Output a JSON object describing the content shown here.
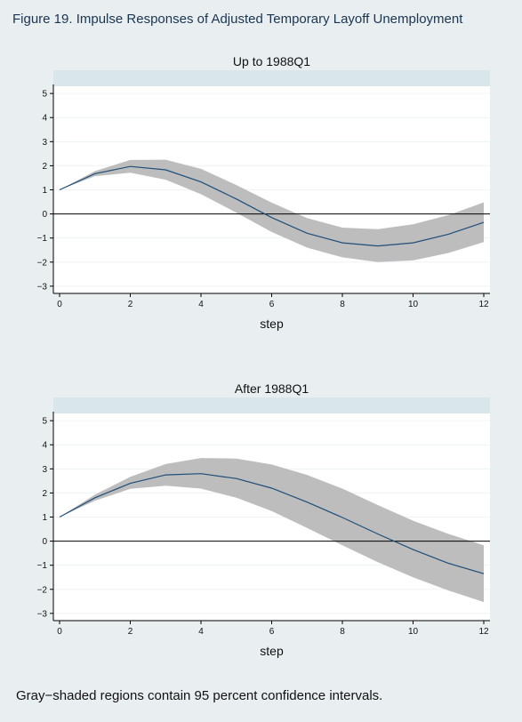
{
  "figure_title": "Figure 19.  Impulse Responses of Adjusted Temporary Layoff Unemployment",
  "footnote": "Gray−shaded regions contain 95 percent confidence intervals.",
  "colors": {
    "background": "#e9eef1",
    "plot_area": "#ffffff",
    "title_band": "#d9e6ec",
    "band": "#bdbdbd",
    "line": "#1f4e79",
    "zero_line": "#000000"
  },
  "chart_data": [
    {
      "type": "line",
      "title": "Up to 1988Q1",
      "xlabel": "step",
      "ylabel": "",
      "xlim": [
        0,
        12
      ],
      "ylim": [
        -3.3,
        5.3
      ],
      "x_ticks": [
        0,
        2,
        4,
        6,
        8,
        10,
        12
      ],
      "y_ticks": [
        -3,
        -2,
        -1,
        0,
        1,
        2,
        3,
        4,
        5
      ],
      "grid": true,
      "zero_line": true,
      "x": [
        0,
        1,
        2,
        3,
        4,
        5,
        6,
        7,
        8,
        9,
        10,
        11,
        12
      ],
      "series": [
        {
          "values": [
            1.0,
            1.67,
            1.97,
            1.83,
            1.33,
            0.62,
            -0.15,
            -0.8,
            -1.2,
            -1.33,
            -1.2,
            -0.84,
            -0.35
          ]
        }
      ],
      "band": {
        "upper": [
          1.0,
          1.78,
          2.24,
          2.25,
          1.87,
          1.2,
          0.47,
          -0.17,
          -0.57,
          -0.63,
          -0.43,
          -0.05,
          0.48
        ],
        "lower": [
          1.0,
          1.57,
          1.71,
          1.42,
          0.82,
          0.05,
          -0.75,
          -1.4,
          -1.8,
          -2.0,
          -1.93,
          -1.62,
          -1.17
        ]
      }
    },
    {
      "type": "line",
      "title": "After 1988Q1",
      "xlabel": "step",
      "ylabel": "",
      "xlim": [
        0,
        12
      ],
      "ylim": [
        -3.3,
        5.3
      ],
      "x_ticks": [
        0,
        2,
        4,
        6,
        8,
        10,
        12
      ],
      "y_ticks": [
        -3,
        -2,
        -1,
        0,
        1,
        2,
        3,
        4,
        5
      ],
      "grid": true,
      "zero_line": true,
      "x": [
        0,
        1,
        2,
        3,
        4,
        5,
        6,
        7,
        8,
        9,
        10,
        11,
        12
      ],
      "series": [
        {
          "values": [
            1.0,
            1.8,
            2.4,
            2.75,
            2.8,
            2.6,
            2.2,
            1.62,
            0.98,
            0.3,
            -0.35,
            -0.92,
            -1.35
          ]
        }
      ],
      "band": {
        "upper": [
          1.0,
          1.93,
          2.67,
          3.2,
          3.45,
          3.43,
          3.18,
          2.75,
          2.18,
          1.5,
          0.85,
          0.3,
          -0.17
        ],
        "lower": [
          1.0,
          1.68,
          2.17,
          2.3,
          2.18,
          1.8,
          1.25,
          0.55,
          -0.17,
          -0.87,
          -1.5,
          -2.05,
          -2.53
        ]
      }
    }
  ]
}
